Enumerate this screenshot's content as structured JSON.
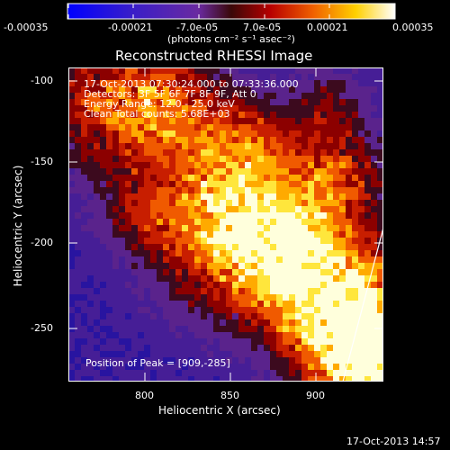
{
  "colorbar": {
    "tick_labels": [
      "-0.00035",
      "-0.00021",
      "-7.0e-05",
      "7.0e-05",
      "0.00021",
      "0.00035"
    ],
    "range": [
      -0.00035,
      0.00035
    ],
    "units": "(photons cm⁻² s⁻¹ asec⁻²)"
  },
  "chart_data": {
    "type": "heatmap",
    "title": "Reconstructed RHESSI Image",
    "xlabel": "Heliocentric X (arcsec)",
    "ylabel": "Heliocentric Y (arcsec)",
    "xlim": [
      755,
      940
    ],
    "ylim": [
      -285,
      -92
    ],
    "x_ticks": [
      800,
      850,
      900
    ],
    "y_ticks": [
      -100,
      -150,
      -200,
      -250
    ],
    "annotations": [
      "17-Oct-2013 07:30:24.000 to 07:33:36.000",
      "Detectors: 3F 5F 6F 7F 8F 9F, Att 0",
      "Energy Range: 12.0 - 25.0 keV",
      "Clean    Total counts: 5.68E+03"
    ],
    "peak_label": "Position of Peak = [909,-285]",
    "peak_position": [
      909,
      -285
    ],
    "colormap": "blue-purple-red-yellow-white"
  },
  "footer": {
    "timestamp": "17-Oct-2013 14:57"
  }
}
